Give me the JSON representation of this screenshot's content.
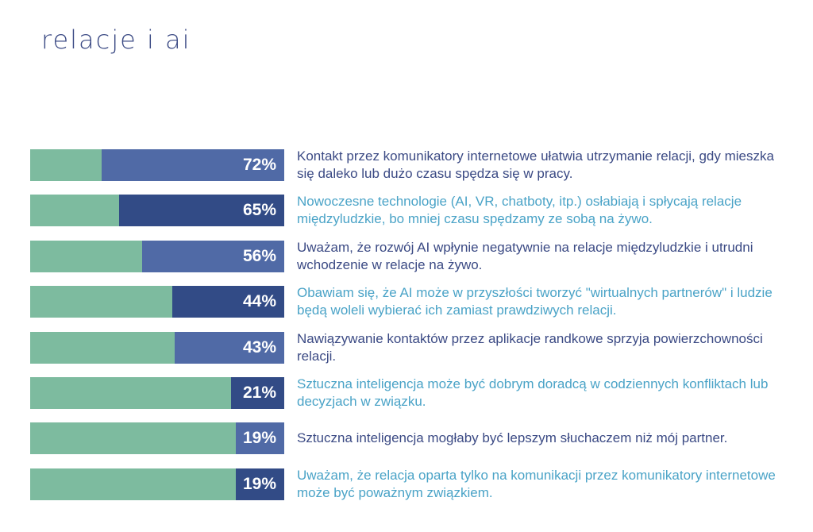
{
  "page": {
    "title": "relacje i AI"
  },
  "colors": {
    "track": "#7dbb9f",
    "fill_light": "#506aa6",
    "fill_dark": "#324b86",
    "label_dark": "#3b4a84",
    "label_light": "#4aa3c7"
  },
  "chart_data": {
    "type": "bar",
    "orientation": "horizontal",
    "value_unit": "%",
    "xlim": [
      0,
      100
    ],
    "grid": false,
    "categories": [
      "Kontakt przez komunikatory internetowe ułatwia utrzymanie relacji, gdy mieszka się daleko lub dużo czasu spędza się w pracy.",
      "Nowoczesne technologie (AI, VR, chatboty, itp.) osłabiają i spłycają relacje międzyludzkie, bo mniej czasu spędzamy ze sobą na żywo.",
      "Uważam, że rozwój AI wpłynie negatywnie na relacje międzyludzkie i utrudni wchodzenie w relacje na żywo.",
      "Obawiam się, że AI może w przyszłości tworzyć \"wirtualnych partnerów\" i ludzie będą woleli wybierać ich zamiast prawdziwych relacji.",
      "Nawiązywanie kontaktów przez aplikacje randkowe sprzyja powierzchowności relacji.",
      "Sztuczna inteligencja może być dobrym doradcą w codziennych konfliktach lub decyzjach w związku.",
      "Sztuczna inteligencja mogłaby być lepszym słuchaczem niż mój partner.",
      "Uważam, że relacja oparta tylko na komunikacji przez komunikatory internetowe może być poważnym związkiem."
    ],
    "values": [
      72,
      65,
      56,
      44,
      43,
      21,
      19,
      19
    ],
    "value_labels": [
      "72%",
      "65%",
      "56%",
      "44%",
      "43%",
      "21%",
      "19%",
      "19%"
    ],
    "fill_colors": [
      "#506aa6",
      "#324b86",
      "#506aa6",
      "#324b86",
      "#506aa6",
      "#324b86",
      "#506aa6",
      "#324b86"
    ],
    "label_colors": [
      "#3b4a84",
      "#4aa3c7",
      "#3b4a84",
      "#4aa3c7",
      "#3b4a84",
      "#4aa3c7",
      "#3b4a84",
      "#4aa3c7"
    ]
  }
}
